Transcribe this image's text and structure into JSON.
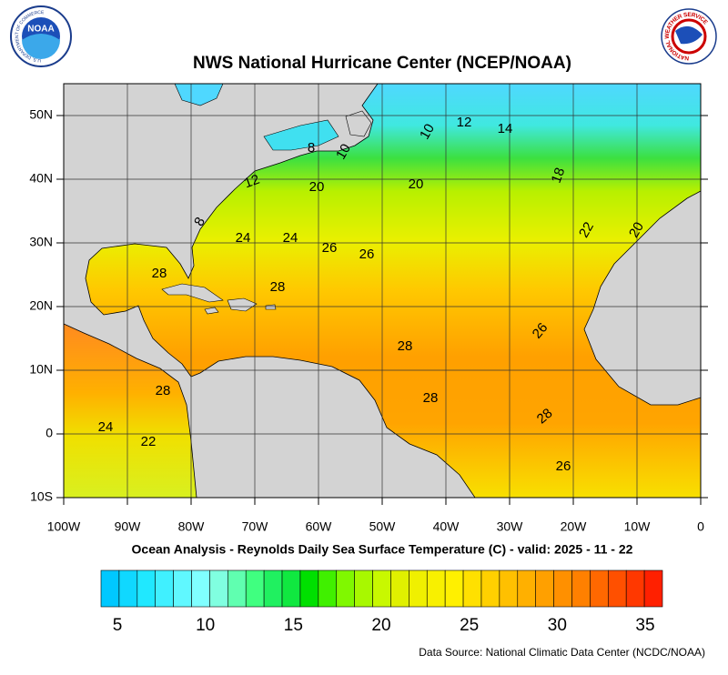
{
  "header": {
    "title": "NWS National Hurricane Center (NCEP/NOAA)"
  },
  "logos": {
    "left": "NOAA",
    "left_ring": "U.S. DEPARTMENT OF COMMERCE",
    "right": "NATIONAL WEATHER SERVICE"
  },
  "map": {
    "x_axis_labels": [
      "100W",
      "90W",
      "80W",
      "70W",
      "60W",
      "50W",
      "40W",
      "30W",
      "20W",
      "10W",
      "0"
    ],
    "y_axis_labels": [
      "50N",
      "40N",
      "30N",
      "20N",
      "10N",
      "0",
      "10S"
    ],
    "contour_labels": [
      8,
      10,
      10,
      12,
      14,
      12,
      20,
      20,
      18,
      8,
      24,
      24,
      26,
      26,
      22,
      20,
      28,
      28,
      28,
      26,
      28,
      28,
      28,
      24,
      22,
      26
    ]
  },
  "caption": "Ocean Analysis - Reynolds Daily Sea Surface Temperature (C) - valid: 2025 - 11 - 22",
  "colorbar": {
    "ticks": [
      5,
      10,
      15,
      20,
      25,
      30,
      35
    ]
  },
  "footer": "Data Source: National Climatic Data Center (NCDC/NOAA)"
}
